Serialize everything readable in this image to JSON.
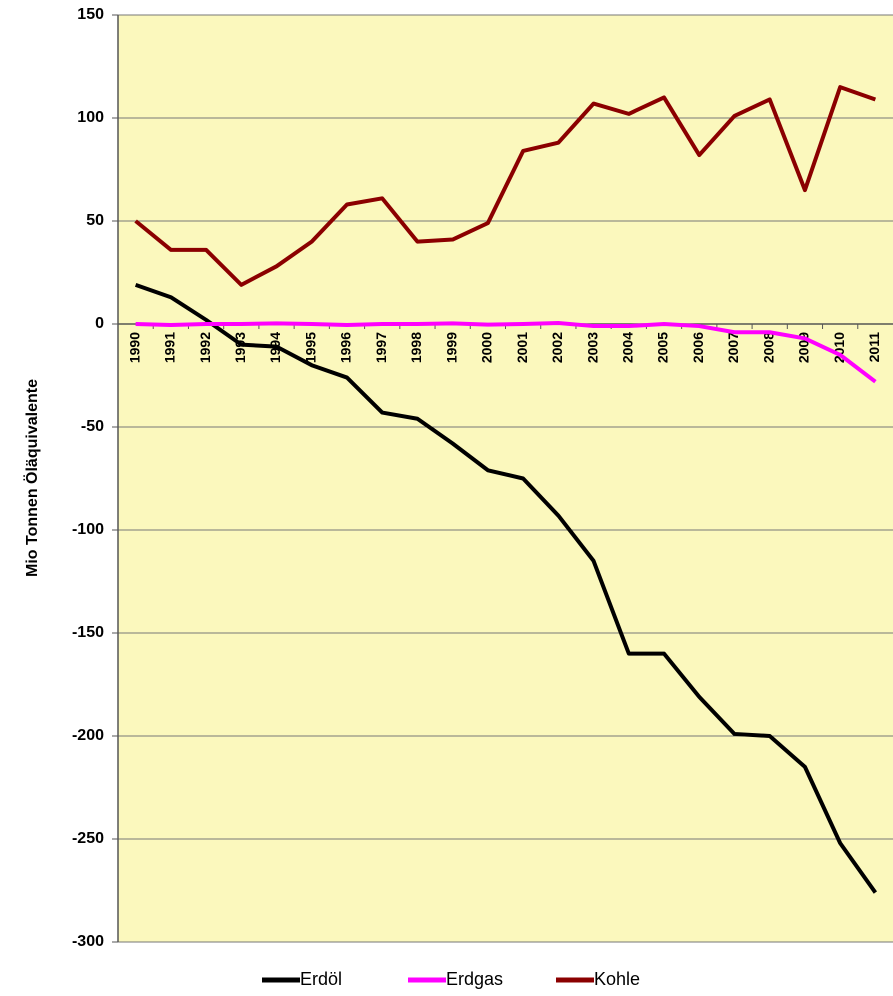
{
  "chart_data": {
    "type": "line",
    "y_label": "Mio Tonnen Öläquivalente",
    "categories": [
      "1990",
      "1991",
      "1992",
      "1993",
      "1994",
      "1995",
      "1996",
      "1997",
      "1998",
      "1999",
      "2000",
      "2001",
      "2002",
      "2003",
      "2004",
      "2005",
      "2006",
      "2007",
      "2008",
      "2009",
      "2010",
      "2011"
    ],
    "series": [
      {
        "name": "Erdöl",
        "color": "#000000",
        "values": [
          19,
          13,
          2,
          -10,
          -11,
          -20,
          -26,
          -43,
          -46,
          -58,
          -71,
          -75,
          -93,
          -115,
          -160,
          -160,
          -181,
          -199,
          -200,
          -215,
          -252,
          -276
        ]
      },
      {
        "name": "Erdgas",
        "color": "#ff00ff",
        "values": [
          0,
          -0.5,
          0,
          0,
          0.3,
          0,
          -0.5,
          0,
          0,
          0.3,
          -0.3,
          0,
          0.5,
          -1,
          -1,
          0,
          -1,
          -4,
          -4,
          -7,
          -15,
          -28
        ]
      },
      {
        "name": "Kohle",
        "color": "#8b0000",
        "values": [
          50,
          36,
          36,
          19,
          28,
          40,
          58,
          61,
          40,
          41,
          49,
          84,
          88,
          107,
          102,
          110,
          82,
          101,
          109,
          65,
          115,
          109
        ]
      }
    ],
    "ylim": [
      -300,
      150
    ],
    "yticks": [
      -300,
      -250,
      -200,
      -150,
      -100,
      -50,
      0,
      50,
      100,
      150
    ],
    "grid": true,
    "legend": "bottom"
  }
}
